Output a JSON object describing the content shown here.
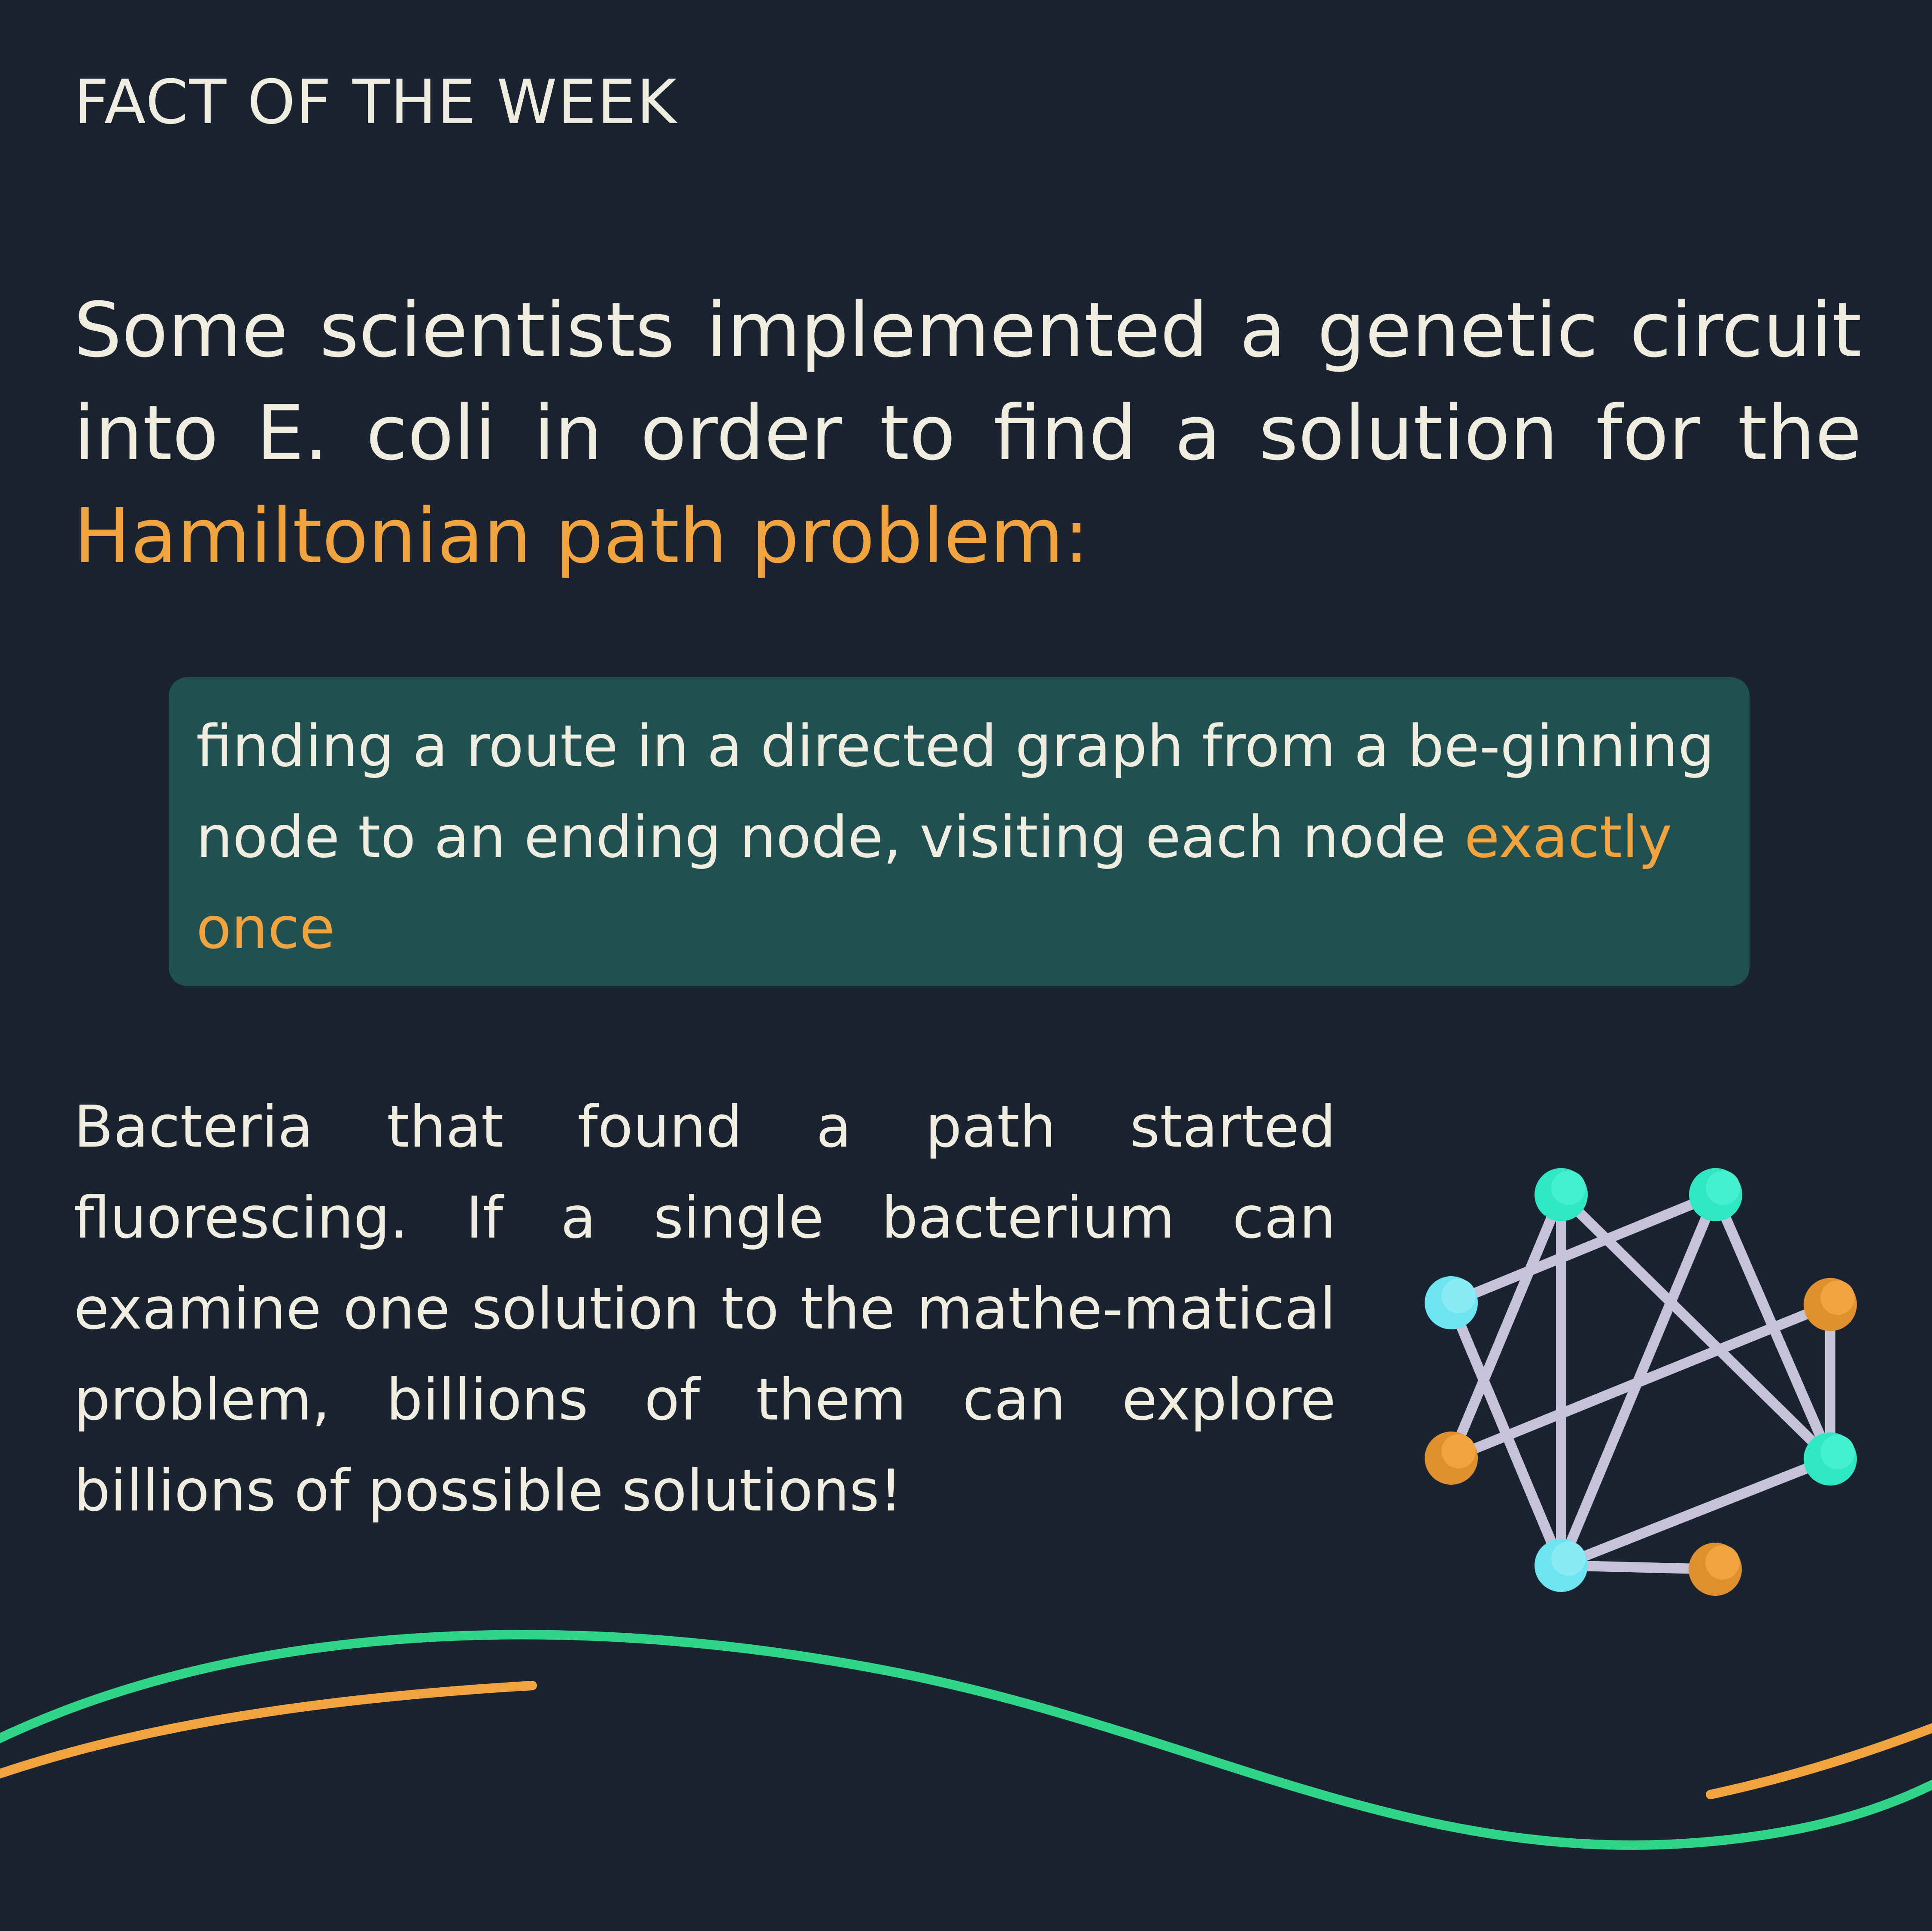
{
  "header": {
    "kicker": "FACT OF THE WEEK"
  },
  "intro": {
    "text": "Some scientists implemented a genetic circuit into E. coli in order to find a solution for the ",
    "highlight": "Hamiltonian path problem:"
  },
  "definition": {
    "text": "finding a route in a directed graph from a be-ginning node to an ending node, visiting each node ",
    "highlight": "exactly once"
  },
  "body": {
    "text": "Bacteria that found a path started fluorescing. If a single bacterium can examine one solution to the mathe-matical problem, billions of them can explore billions of possible solutions!"
  },
  "colors": {
    "background": "#1a2430",
    "text": "#eeede0",
    "accent_orange": "#f1a33d",
    "box_teal": "#215053",
    "wave_green": "#2fd688",
    "node_teal": "#2ee8c4",
    "node_cyan": "#6ee4f2",
    "edge_lavender": "#c6c3d8"
  },
  "illustration": {
    "icon": "graph-network-icon"
  }
}
